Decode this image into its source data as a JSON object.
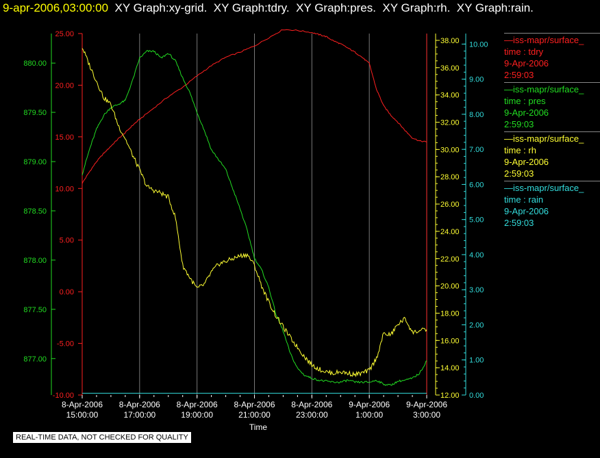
{
  "header": {
    "datetime": "9-apr-2006,03:00:00",
    "graphs": [
      "XY Graph:xy-grid.",
      "XY Graph:tdry.",
      "XY Graph:pres.",
      "XY Graph:rh.",
      "XY Graph:rain."
    ]
  },
  "legend": [
    {
      "name": "iss-mapr/surface_",
      "var": "time : tdry",
      "date": "9-Apr-2006",
      "time": "2:59:03",
      "color": "#ff2020"
    },
    {
      "name": "iss-mapr/surface_",
      "var": "time : pres",
      "date": "9-Apr-2006",
      "time": "2:59:03",
      "color": "#22dd22"
    },
    {
      "name": "iss-mapr/surface_",
      "var": "time : rh",
      "date": "9-Apr-2006",
      "time": "2:59:03",
      "color": "#ffff33"
    },
    {
      "name": "iss-mapr/surface_",
      "var": "time : rain",
      "date": "9-Apr-2006",
      "time": "2:59:03",
      "color": "#33dddd"
    }
  ],
  "footnote": "REAL-TIME DATA, NOT CHECKED FOR QUALITY",
  "chart_data": {
    "type": "line",
    "xlabel": "Time",
    "x_ticks": [
      {
        "date": "8-Apr-2006",
        "time": "15:00:00"
      },
      {
        "date": "8-Apr-2006",
        "time": "17:00:00"
      },
      {
        "date": "8-Apr-2006",
        "time": "19:00:00"
      },
      {
        "date": "8-Apr-2006",
        "time": "21:00:00"
      },
      {
        "date": "8-Apr-2006",
        "time": "23:00:00"
      },
      {
        "date": "9-Apr-2006",
        "time": "1:00:00"
      },
      {
        "date": "9-Apr-2006",
        "time": "3:00:00"
      }
    ],
    "xlim": [
      "8-Apr-2006 15:00:00",
      "9-Apr-2006 3:00:00"
    ],
    "grid": true,
    "axes": {
      "tdry": {
        "ylim": [
          -10,
          25
        ],
        "ticks": [
          "25.00",
          "20.00",
          "15.00",
          "10.00",
          "5.00",
          "0.00",
          "-5.00",
          "-10.00"
        ],
        "color": "#ff2020"
      },
      "pres": {
        "ylim": [
          876.63,
          880.3
        ],
        "ticks": [
          "880.00",
          "879.50",
          "879.00",
          "878.50",
          "878.00",
          "877.50",
          "877.00"
        ],
        "color": "#22dd22"
      },
      "rh": {
        "ylim": [
          12,
          38.5
        ],
        "ticks": [
          "38.00",
          "36.00",
          "34.00",
          "32.00",
          "30.00",
          "28.00",
          "26.00",
          "24.00",
          "22.00",
          "20.00",
          "18.00",
          "16.00",
          "14.00",
          "12.00"
        ],
        "color": "#ffff33"
      },
      "rain": {
        "ylim": [
          0,
          10.3
        ],
        "ticks": [
          "10.00",
          "9.00",
          "8.00",
          "7.00",
          "6.00",
          "5.00",
          "4.00",
          "3.00",
          "2.00",
          "1.00",
          "0.00"
        ],
        "color": "#33dddd"
      }
    },
    "series": [
      {
        "name": "tdry",
        "axis": "tdry",
        "color": "#ff2020",
        "x": [
          0,
          0.25,
          0.5,
          0.75,
          1,
          1.25,
          1.5,
          1.75,
          2,
          2.5,
          3,
          3.5,
          4,
          4.5,
          5,
          5.5,
          6,
          6.5,
          7,
          7.5,
          8,
          8.25,
          8.5,
          8.75,
          9,
          9.25,
          9.5,
          9.75,
          10,
          10.25,
          10.5,
          10.75,
          11,
          11.25,
          11.5,
          11.75,
          12
        ],
        "y": [
          10.5,
          11.6,
          12.6,
          13.4,
          14.1,
          14.8,
          15.4,
          16.1,
          16.7,
          17.8,
          18.9,
          19.8,
          20.9,
          21.9,
          22.7,
          23.2,
          23.8,
          24.6,
          25.4,
          25.3,
          25.1,
          24.9,
          24.7,
          24.3,
          24.0,
          23.6,
          23.2,
          22.7,
          22.1,
          19.6,
          18.0,
          17.1,
          16.4,
          15.6,
          14.9,
          14.6,
          14.5
        ]
      },
      {
        "name": "pres",
        "axis": "pres",
        "color": "#22dd22",
        "x": [
          0,
          0.25,
          0.5,
          0.75,
          1,
          1.25,
          1.5,
          1.75,
          2,
          2.25,
          2.5,
          2.75,
          3,
          3.25,
          3.5,
          3.75,
          4,
          4.25,
          4.5,
          4.75,
          5,
          5.25,
          5.5,
          5.75,
          6,
          6.25,
          6.5,
          6.75,
          7,
          7.25,
          7.5,
          7.75,
          8,
          8.25,
          8.5,
          8.75,
          9,
          9.25,
          9.5,
          9.75,
          10,
          10.25,
          10.5,
          10.75,
          11,
          11.25,
          11.5,
          11.75,
          12
        ],
        "y": [
          878.87,
          879.12,
          879.33,
          879.47,
          879.55,
          879.58,
          879.62,
          879.82,
          880.05,
          880.12,
          880.12,
          880.05,
          880.1,
          880.02,
          879.85,
          879.7,
          879.5,
          879.32,
          879.12,
          879.02,
          878.92,
          878.72,
          878.52,
          878.3,
          878.02,
          877.9,
          877.72,
          877.45,
          877.28,
          877.05,
          876.9,
          876.83,
          876.8,
          876.78,
          876.77,
          876.76,
          876.76,
          876.78,
          876.76,
          876.76,
          876.76,
          876.78,
          876.74,
          876.73,
          876.77,
          876.78,
          876.8,
          876.85,
          876.98
        ]
      },
      {
        "name": "rh",
        "axis": "rh",
        "color": "#ffff33",
        "x": [
          0,
          0.25,
          0.5,
          0.75,
          1,
          1.25,
          1.5,
          1.75,
          2,
          2.25,
          2.5,
          2.75,
          3,
          3.25,
          3.5,
          3.75,
          4,
          4.25,
          4.5,
          4.75,
          5,
          5.25,
          5.5,
          5.75,
          6,
          6.25,
          6.5,
          6.75,
          7,
          7.25,
          7.5,
          7.75,
          8,
          8.25,
          8.5,
          8.75,
          9,
          9.25,
          9.5,
          9.75,
          10,
          10.25,
          10.5,
          10.75,
          11,
          11.25,
          11.5,
          11.75,
          12
        ],
        "y": [
          37.5,
          36.2,
          35.0,
          33.8,
          33.3,
          31.8,
          30.8,
          29.6,
          28.5,
          27.3,
          27.0,
          26.8,
          26.5,
          25.0,
          21.5,
          20.6,
          19.8,
          20.1,
          21.0,
          21.6,
          21.8,
          22.0,
          22.2,
          22.3,
          21.5,
          20.0,
          18.8,
          17.8,
          17.0,
          16.2,
          15.5,
          14.8,
          14.2,
          13.9,
          13.7,
          13.6,
          13.7,
          13.6,
          13.5,
          13.6,
          13.8,
          14.7,
          16.5,
          16.4,
          17.2,
          17.6,
          16.6,
          16.7,
          16.8
        ]
      },
      {
        "name": "rain",
        "axis": "rain",
        "color": "#33dddd",
        "x": [
          0,
          12
        ],
        "y": [
          0.05,
          0.05
        ]
      }
    ]
  }
}
